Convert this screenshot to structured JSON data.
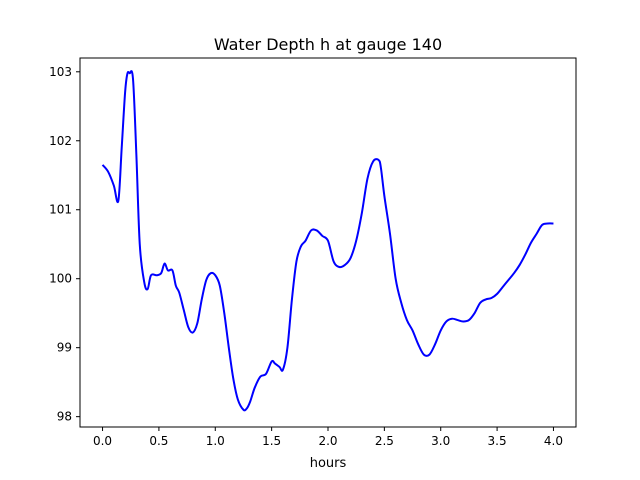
{
  "chart_data": {
    "type": "line",
    "title": "Water Depth h at gauge 140",
    "xlabel": "hours",
    "ylabel": "",
    "xlim": [
      -0.2,
      4.2
    ],
    "ylim": [
      97.85,
      103.2
    ],
    "xticks": [
      0.0,
      0.5,
      1.0,
      1.5,
      2.0,
      2.5,
      3.0,
      3.5,
      4.0
    ],
    "xtick_labels": [
      "0.0",
      "0.5",
      "1.0",
      "1.5",
      "2.0",
      "2.5",
      "3.0",
      "3.5",
      "4.0"
    ],
    "yticks": [
      98,
      99,
      100,
      101,
      102,
      103
    ],
    "ytick_labels": [
      "98",
      "99",
      "100",
      "101",
      "102",
      "103"
    ],
    "grid": false,
    "series": [
      {
        "color": "#0000ff",
        "x": [
          0.0,
          0.05,
          0.1,
          0.14,
          0.17,
          0.2,
          0.22,
          0.24,
          0.27,
          0.3,
          0.33,
          0.37,
          0.4,
          0.43,
          0.48,
          0.52,
          0.55,
          0.58,
          0.62,
          0.65,
          0.68,
          0.72,
          0.76,
          0.8,
          0.84,
          0.88,
          0.92,
          0.96,
          1.0,
          1.04,
          1.08,
          1.12,
          1.16,
          1.2,
          1.25,
          1.28,
          1.31,
          1.35,
          1.4,
          1.45,
          1.5,
          1.53,
          1.57,
          1.6,
          1.64,
          1.68,
          1.72,
          1.76,
          1.8,
          1.85,
          1.9,
          1.95,
          2.0,
          2.05,
          2.1,
          2.15,
          2.2,
          2.25,
          2.3,
          2.35,
          2.4,
          2.45,
          2.47,
          2.5,
          2.55,
          2.6,
          2.65,
          2.7,
          2.75,
          2.8,
          2.85,
          2.9,
          2.95,
          3.0,
          3.05,
          3.1,
          3.15,
          3.2,
          3.25,
          3.3,
          3.35,
          3.4,
          3.45,
          3.5,
          3.55,
          3.6,
          3.65,
          3.7,
          3.75,
          3.8,
          3.85,
          3.9,
          3.95,
          4.0
        ],
        "y": [
          101.65,
          101.55,
          101.35,
          101.13,
          101.9,
          102.7,
          102.97,
          102.98,
          102.9,
          101.8,
          100.5,
          99.95,
          99.85,
          100.05,
          100.05,
          100.08,
          100.22,
          100.12,
          100.12,
          99.9,
          99.8,
          99.55,
          99.3,
          99.22,
          99.35,
          99.7,
          99.98,
          100.08,
          100.05,
          99.9,
          99.5,
          99.0,
          98.55,
          98.25,
          98.1,
          98.12,
          98.22,
          98.42,
          98.58,
          98.62,
          98.8,
          98.77,
          98.72,
          98.68,
          99.0,
          99.7,
          100.25,
          100.47,
          100.55,
          100.7,
          100.7,
          100.62,
          100.55,
          100.25,
          100.17,
          100.2,
          100.3,
          100.55,
          100.95,
          101.45,
          101.7,
          101.72,
          101.6,
          101.2,
          100.65,
          100.0,
          99.65,
          99.4,
          99.25,
          99.05,
          98.9,
          98.9,
          99.05,
          99.25,
          99.38,
          99.42,
          99.4,
          99.38,
          99.4,
          99.5,
          99.65,
          99.7,
          99.72,
          99.78,
          99.88,
          99.98,
          100.08,
          100.2,
          100.35,
          100.52,
          100.65,
          100.78,
          100.8,
          100.8
        ]
      }
    ]
  }
}
